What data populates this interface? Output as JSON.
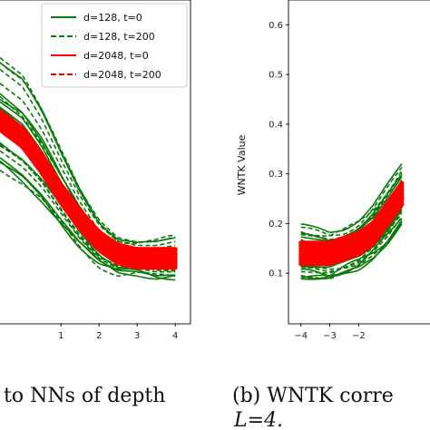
{
  "chart_data": [
    {
      "type": "line",
      "title": "",
      "xlabel": "",
      "ylabel": "",
      "xlim": [
        -0.6,
        4.4
      ],
      "ylim": [
        0.0,
        0.75
      ],
      "x_ticks": [
        1,
        2,
        3,
        4
      ],
      "x_tick_labels": [
        "1",
        "2",
        "3",
        "4"
      ],
      "grid": false,
      "legend_position": "top-right",
      "legend": [
        {
          "label": "d=128, t=0",
          "color": "#0a7a0a",
          "style": "solid"
        },
        {
          "label": "d=128, t=200",
          "color": "#0a7a0a",
          "style": "dashed"
        },
        {
          "label": "d=2048, t=0",
          "color": "#ff0000",
          "style": "solid"
        },
        {
          "label": "d=2048, t=200",
          "color": "#ff0000",
          "style": "dashed"
        }
      ],
      "series": [
        {
          "color": "#ff0000",
          "x": [
            -0.6,
            0,
            0.5,
            1,
            1.5,
            2,
            2.5,
            3,
            3.5,
            4
          ],
          "y": [
            0.47,
            0.43,
            0.37,
            0.3,
            0.24,
            0.19,
            0.16,
            0.15,
            0.15,
            0.15
          ]
        },
        {
          "color": "#0a7a0a",
          "x": [
            -0.6,
            0,
            0.5,
            1,
            1.5,
            2,
            2.5,
            3,
            3.5,
            4
          ],
          "y": [
            0.62,
            0.58,
            0.5,
            0.4,
            0.31,
            0.24,
            0.2,
            0.19,
            0.19,
            0.2
          ]
        },
        {
          "color": "#0a7a0a",
          "x": [
            -0.6,
            0,
            0.5,
            1,
            1.5,
            2,
            2.5,
            3,
            3.5,
            4
          ],
          "y": [
            0.35,
            0.31,
            0.27,
            0.22,
            0.17,
            0.13,
            0.11,
            0.11,
            0.1,
            0.1
          ]
        }
      ]
    },
    {
      "type": "line",
      "title": "",
      "xlabel": "",
      "ylabel": "WNTK Value",
      "xlim": [
        -4.4,
        0.6
      ],
      "ylim": [
        0.0,
        0.65
      ],
      "x_ticks": [
        -4,
        -3,
        -2
      ],
      "x_tick_labels": [
        "−4",
        "−3",
        "−2"
      ],
      "y_ticks": [
        0.1,
        0.2,
        0.3,
        0.4,
        0.5,
        0.6
      ],
      "y_tick_labels": [
        "0.1",
        "0.2",
        "0.3",
        "0.4",
        "0.5",
        "0.6"
      ],
      "grid": false,
      "series": [
        {
          "color": "#ff0000",
          "x": [
            -4,
            -3.5,
            -3,
            -2.5,
            -2,
            -1.5,
            -1,
            -0.5
          ],
          "y": [
            0.14,
            0.14,
            0.14,
            0.15,
            0.16,
            0.18,
            0.22,
            0.26
          ]
        },
        {
          "color": "#0a7a0a",
          "x": [
            -4,
            -3.5,
            -3,
            -2.5,
            -2,
            -1.5,
            -1,
            -0.5
          ],
          "y": [
            0.21,
            0.2,
            0.19,
            0.2,
            0.22,
            0.25,
            0.29,
            0.33
          ]
        },
        {
          "color": "#0a7a0a",
          "x": [
            -4,
            -3.5,
            -3,
            -2.5,
            -2,
            -1.5,
            -1,
            -0.5
          ],
          "y": [
            0.09,
            0.09,
            0.09,
            0.1,
            0.11,
            0.13,
            0.16,
            0.2
          ]
        }
      ]
    }
  ],
  "captions": {
    "left": "to NNs of depth",
    "right_prefix": "(b) WNTK corre",
    "right_line2": "L=4."
  }
}
